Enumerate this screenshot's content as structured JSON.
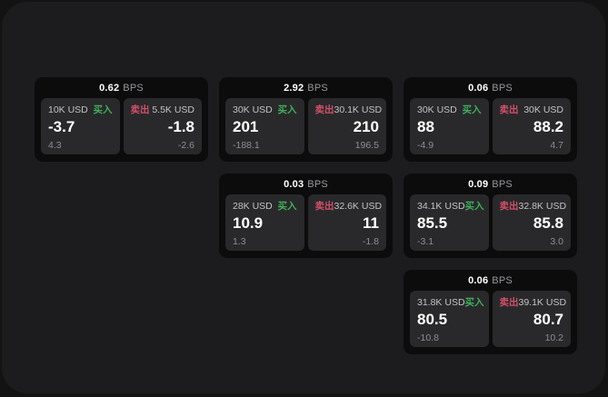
{
  "labels": {
    "buy": "买入",
    "sell": "卖出",
    "bps_unit": "BPS"
  },
  "colors": {
    "outer_background": "#131314",
    "surface_background": "#1c1c1e",
    "card_background": "#0c0c0d",
    "panel_background": "#29292b",
    "buy_green": "#3fae5a",
    "sell_red": "#d25067",
    "primary_text": "#ffffff",
    "secondary_text": "#c3c3c5",
    "muted_text": "#8e8e92"
  },
  "cards": [
    {
      "bps": "0.62",
      "buy": {
        "size": "10K USD",
        "value": "-3.7",
        "delta": "4.3"
      },
      "sell": {
        "size": "5.5K USD",
        "value": "-1.8",
        "delta": "-2.6"
      }
    },
    {
      "bps": "2.92",
      "buy": {
        "size": "30K USD",
        "value": "201",
        "delta": "-188.1"
      },
      "sell": {
        "size": "30.1K USD",
        "value": "210",
        "delta": "196.5"
      }
    },
    {
      "bps": "0.03",
      "buy": {
        "size": "28K USD",
        "value": "10.9",
        "delta": "1.3"
      },
      "sell": {
        "size": "32.6K USD",
        "value": "11",
        "delta": "-1.8"
      }
    },
    {
      "bps": "0.06",
      "buy": {
        "size": "30K USD",
        "value": "88",
        "delta": "-4.9"
      },
      "sell": {
        "size": "30K USD",
        "value": "88.2",
        "delta": "4.7"
      }
    },
    {
      "bps": "0.09",
      "buy": {
        "size": "34.1K USD",
        "value": "85.5",
        "delta": "-3.1"
      },
      "sell": {
        "size": "32.8K USD",
        "value": "85.8",
        "delta": "3.0"
      }
    },
    {
      "bps": "0.06",
      "buy": {
        "size": "31.8K USD",
        "value": "80.5",
        "delta": "-10.8"
      },
      "sell": {
        "size": "39.1K USD",
        "value": "80.7",
        "delta": "10.2"
      }
    }
  ]
}
